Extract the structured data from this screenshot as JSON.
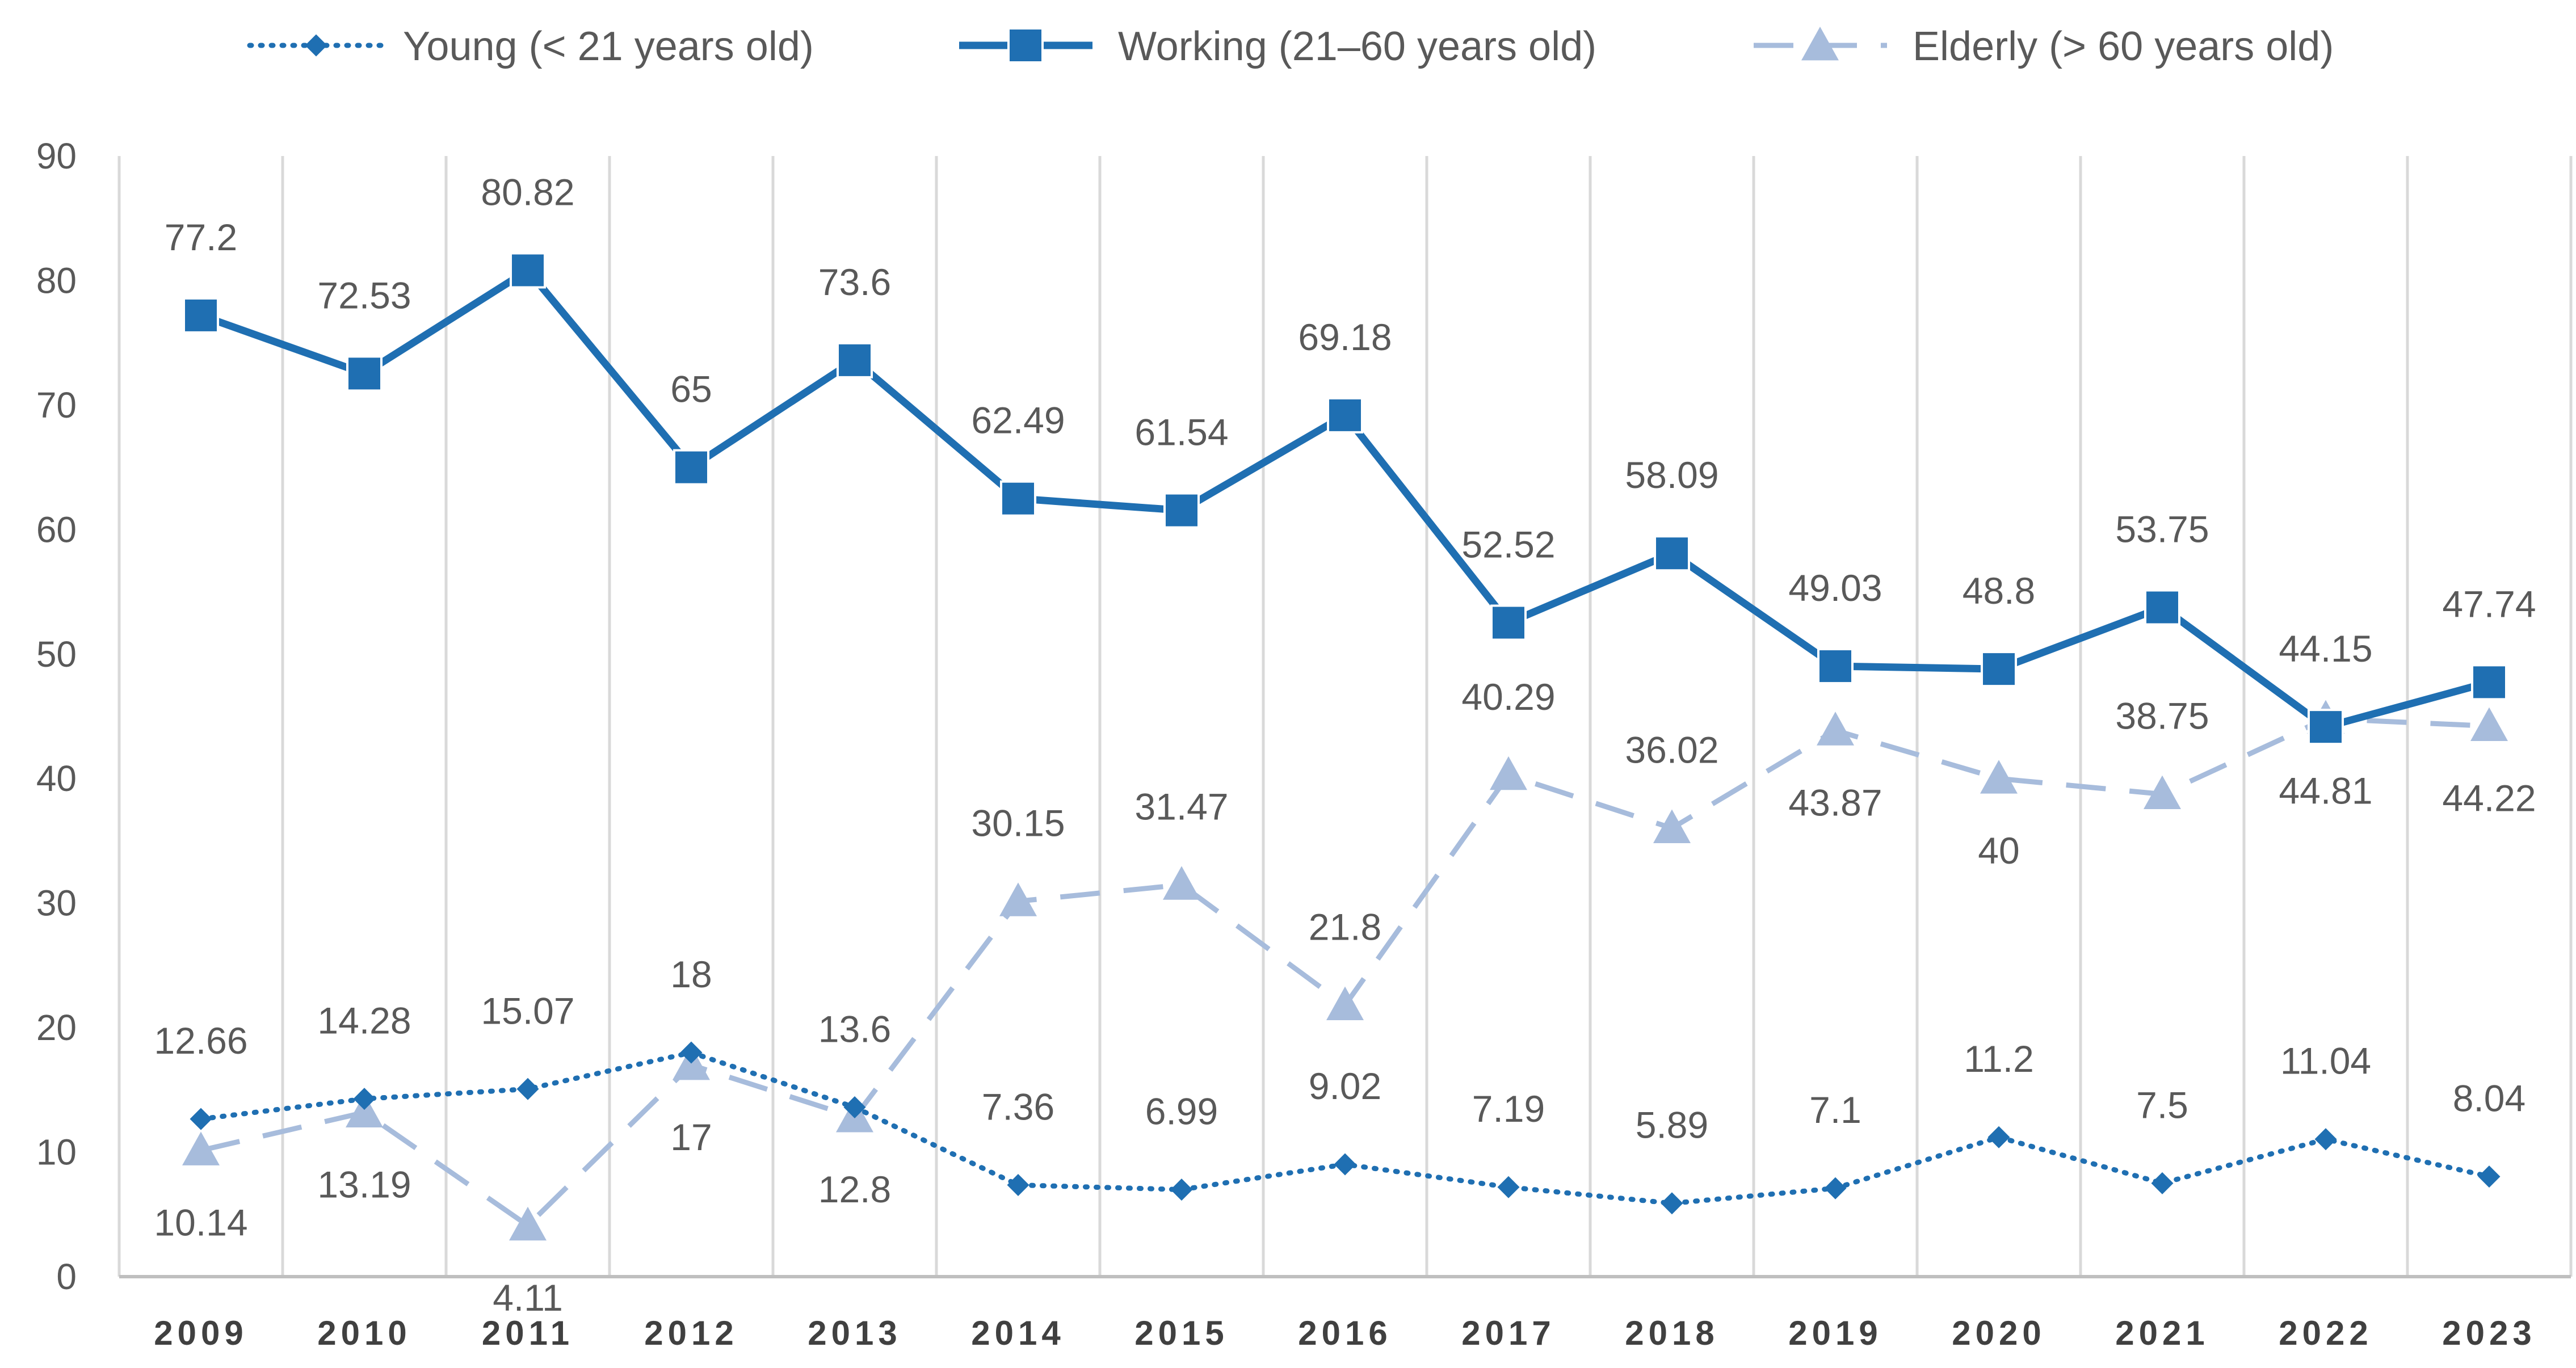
{
  "chart_data": {
    "type": "line",
    "categories": [
      "2009",
      "2010",
      "2011",
      "2012",
      "2013",
      "2014",
      "2015",
      "2016",
      "2017",
      "2018",
      "2019",
      "2020",
      "2021",
      "2022",
      "2023"
    ],
    "ylim": [
      0,
      90
    ],
    "yticks": [
      0,
      10,
      20,
      30,
      40,
      50,
      60,
      70,
      80,
      90
    ],
    "ytick_labels": [
      "0",
      "10",
      "20",
      "30",
      "40",
      "50",
      "60",
      "70",
      "80",
      "90"
    ],
    "grid": "vertical",
    "legend_position": "top",
    "series": [
      {
        "name": "Young (< 21 years old)",
        "style": "dotted",
        "marker": "diamond",
        "color": "#1f6fb2",
        "values": [
          12.66,
          14.28,
          15.07,
          18,
          13.6,
          7.36,
          6.99,
          9.02,
          7.19,
          5.89,
          7.1,
          11.2,
          7.5,
          11.04,
          8.04
        ],
        "labels": [
          "12.66",
          "14.28",
          "15.07",
          "18",
          "13.6",
          "7.36",
          "6.99",
          "9.02",
          "7.19",
          "5.89",
          "7.1",
          "11.2",
          "7.5",
          "11.04",
          "8.04"
        ]
      },
      {
        "name": "Working (21–60 years old)",
        "style": "solid",
        "marker": "square",
        "color": "#1f6fb2",
        "values": [
          77.2,
          72.53,
          80.82,
          65,
          73.6,
          62.49,
          61.54,
          69.18,
          52.52,
          58.09,
          49.03,
          48.8,
          53.75,
          44.15,
          47.74
        ],
        "labels": [
          "77.2",
          "72.53",
          "80.82",
          "65",
          "73.6",
          "62.49",
          "61.54",
          "69.18",
          "52.52",
          "58.09",
          "49.03",
          "48.8",
          "53.75",
          "44.15",
          "47.74"
        ]
      },
      {
        "name": "Elderly (> 60  years old)",
        "style": "dashed",
        "marker": "triangle",
        "color": "#a7bcdc",
        "values": [
          10.14,
          13.19,
          4.11,
          17,
          12.8,
          30.15,
          31.47,
          21.8,
          40.29,
          36.02,
          43.87,
          40,
          38.75,
          44.81,
          44.22
        ],
        "labels": [
          "10.14",
          "13.19",
          "4.11",
          "17",
          "12.8",
          "30.15",
          "31.47",
          "21.8",
          "40.29",
          "36.02",
          "43.87",
          "40",
          "38.75",
          "44.81",
          "44.22"
        ]
      }
    ]
  }
}
